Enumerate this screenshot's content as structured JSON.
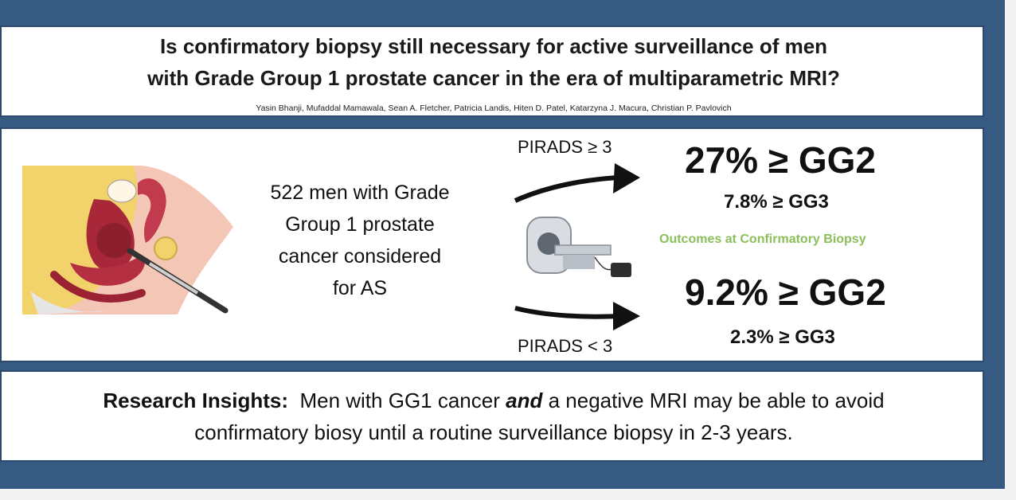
{
  "header": {
    "title_line1": "Is confirmatory biopsy still necessary for active surveillance of men",
    "title_line2": "with Grade Group 1 prostate cancer in the era of multiparametric MRI?",
    "authors": "Yasin Bhanji, Mufaddal Mamawala, Sean A. Fletcher, Patricia Landis, Hiten D. Patel, Katarzyna J. Macura, Christian P. Pavlovich"
  },
  "cohort": {
    "line1": "522 men with Grade",
    "line2": "Group 1 prostate",
    "line3": "cancer considered",
    "line4": "for AS"
  },
  "pirads_high": {
    "label": "PIRADS ≥ 3",
    "gg2": "27% ≥ GG2",
    "gg3": "7.8% ≥ GG3"
  },
  "pirads_low": {
    "label": "PIRADS < 3",
    "gg2": "9.2% ≥ GG2",
    "gg3": "2.3% ≥ GG3"
  },
  "outcomes_label": "Outcomes at Confirmatory Biopsy",
  "insight": {
    "label": "Research Insights:",
    "text_a": "Men with GG1 cancer",
    "emph": "and",
    "text_b": "a negative MRI may be able to avoid",
    "line2": "confirmatory biosy until a routine surveillance biopsy in 2-3 years."
  },
  "colors": {
    "frame": "#365a82",
    "outcome_green": "#8bbf5a",
    "anatomy_skin": "#f4c6b6",
    "anatomy_yellow": "#f2d36b",
    "anatomy_red": "#a8283a"
  }
}
